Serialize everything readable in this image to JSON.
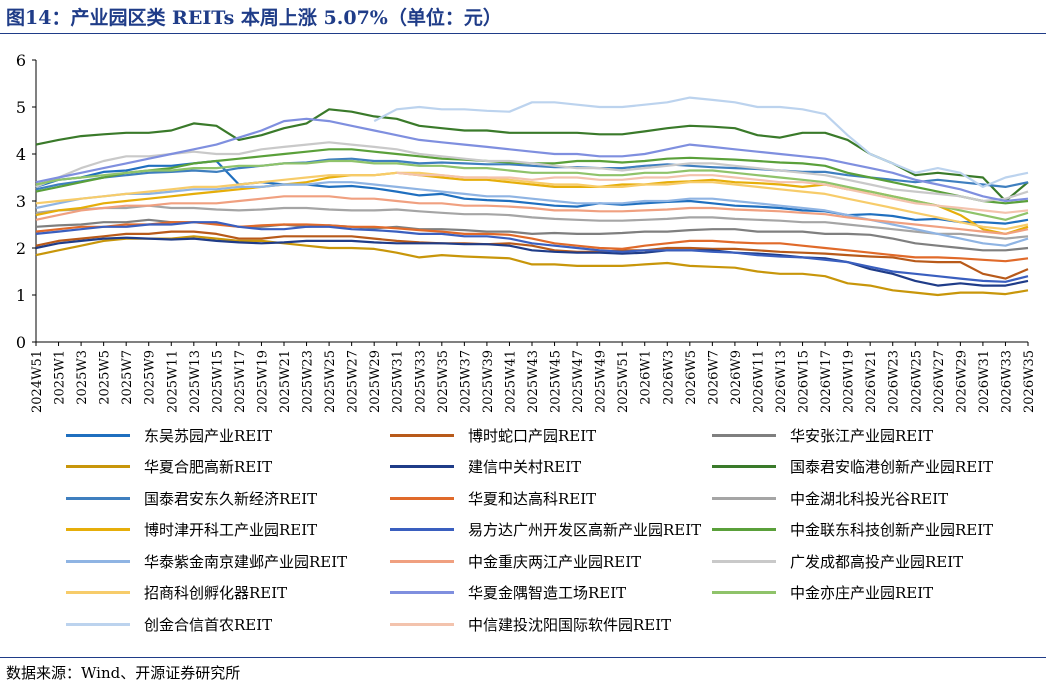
{
  "header": {
    "title": "图14：产业园区类 REITs 本周上涨 5.07%（单位：元）"
  },
  "footer": {
    "source": "数据来源：Wind、开源证券研究所"
  },
  "chart_data": {
    "type": "line",
    "ylim": [
      0,
      6
    ],
    "yticks": [
      0,
      1,
      2,
      3,
      4,
      5,
      6
    ],
    "categories": [
      "2024W51",
      "2025W1",
      "2025W3",
      "2025W5",
      "2025W7",
      "2025W9",
      "2025W11",
      "2025W13",
      "2025W15",
      "2025W17",
      "2025W19",
      "2025W21",
      "2025W23",
      "2025W25",
      "2025W27",
      "2025W29",
      "2025W31",
      "2025W33",
      "2025W35",
      "2025W37",
      "2025W39",
      "2025W41",
      "2025W43",
      "2025W45",
      "2025W47",
      "2025W49",
      "2025W51",
      "2026W1",
      "2026W3",
      "2026W5",
      "2026W7",
      "2026W9",
      "2026W11",
      "2026W13",
      "2026W15",
      "2026W17",
      "2026W19",
      "2026W21",
      "2026W23",
      "2026W25",
      "2026W27",
      "2026W29",
      "2026W31",
      "2026W33",
      "2026W35"
    ],
    "legend_placement": "bottom",
    "series": [
      {
        "name": "东吴苏园产业REIT",
        "color": "#1f6fbf",
        "values": [
          3.3,
          3.45,
          3.5,
          3.62,
          3.65,
          3.75,
          3.75,
          3.8,
          3.85,
          3.35,
          3.4,
          3.35,
          3.35,
          3.3,
          3.32,
          3.27,
          3.2,
          3.12,
          3.15,
          3.05,
          3.02,
          3.0,
          2.95,
          2.9,
          2.88,
          2.95,
          2.92,
          2.95,
          2.98,
          3.0,
          2.95,
          2.9,
          2.88,
          2.85,
          2.8,
          2.78,
          2.7,
          2.72,
          2.68,
          2.6,
          2.62,
          2.55,
          2.55,
          2.52,
          2.6
        ]
      },
      {
        "name": "博时蛇口产园REIT",
        "color": "#b85a1a",
        "values": [
          2.05,
          2.15,
          2.2,
          2.25,
          2.3,
          2.3,
          2.35,
          2.35,
          2.3,
          2.2,
          2.2,
          2.25,
          2.25,
          2.25,
          2.25,
          2.2,
          2.15,
          2.12,
          2.1,
          2.1,
          2.08,
          2.1,
          2.05,
          1.95,
          1.92,
          1.92,
          1.95,
          1.95,
          2.0,
          2.0,
          1.98,
          1.98,
          1.95,
          1.92,
          1.9,
          1.88,
          1.85,
          1.82,
          1.8,
          1.72,
          1.7,
          1.7,
          1.45,
          1.35,
          1.55
        ]
      },
      {
        "name": "华安张江产业园REIT",
        "color": "#7f7f7f",
        "values": [
          2.45,
          2.48,
          2.5,
          2.55,
          2.55,
          2.6,
          2.55,
          2.55,
          2.52,
          2.45,
          2.45,
          2.5,
          2.45,
          2.48,
          2.45,
          2.42,
          2.45,
          2.4,
          2.4,
          2.38,
          2.35,
          2.35,
          2.3,
          2.32,
          2.3,
          2.3,
          2.32,
          2.35,
          2.35,
          2.38,
          2.4,
          2.4,
          2.35,
          2.35,
          2.35,
          2.3,
          2.3,
          2.28,
          2.2,
          2.1,
          2.05,
          2.0,
          1.95,
          1.95,
          2.0
        ]
      },
      {
        "name": "华夏合肥高新REIT",
        "color": "#c8960a",
        "values": [
          1.85,
          1.95,
          2.05,
          2.15,
          2.2,
          2.2,
          2.2,
          2.25,
          2.2,
          2.15,
          2.15,
          2.1,
          2.05,
          2.0,
          2.0,
          1.98,
          1.9,
          1.8,
          1.85,
          1.82,
          1.8,
          1.78,
          1.65,
          1.65,
          1.62,
          1.62,
          1.62,
          1.65,
          1.68,
          1.62,
          1.6,
          1.58,
          1.5,
          1.45,
          1.45,
          1.4,
          1.25,
          1.2,
          1.1,
          1.05,
          1.0,
          1.05,
          1.05,
          1.02,
          1.1
        ]
      },
      {
        "name": "建信中关村REIT",
        "color": "#1f3c88",
        "values": [
          2.0,
          2.1,
          2.15,
          2.2,
          2.22,
          2.2,
          2.18,
          2.2,
          2.15,
          2.12,
          2.1,
          2.12,
          2.15,
          2.15,
          2.15,
          2.12,
          2.1,
          2.1,
          2.1,
          2.08,
          2.08,
          2.05,
          1.95,
          1.92,
          1.9,
          1.9,
          1.88,
          1.9,
          1.95,
          1.95,
          1.95,
          1.9,
          1.88,
          1.85,
          1.8,
          1.78,
          1.7,
          1.55,
          1.45,
          1.3,
          1.2,
          1.25,
          1.2,
          1.2,
          1.3
        ]
      },
      {
        "name": "国泰君安临港创新产业园REIT",
        "color": "#3a7a2a",
        "values": [
          4.2,
          4.3,
          4.38,
          4.42,
          4.45,
          4.45,
          4.5,
          4.65,
          4.6,
          4.3,
          4.4,
          4.55,
          4.65,
          4.95,
          4.9,
          4.8,
          4.75,
          4.6,
          4.55,
          4.5,
          4.5,
          4.45,
          4.45,
          4.45,
          4.45,
          4.42,
          4.42,
          4.48,
          4.55,
          4.6,
          4.58,
          4.55,
          4.4,
          4.35,
          4.45,
          4.45,
          4.3,
          4.0,
          3.8,
          3.55,
          3.6,
          3.55,
          3.5,
          3.0,
          3.4
        ]
      },
      {
        "name": "国泰君安东久新经济REIT",
        "color": "#3f7fbf",
        "values": [
          3.25,
          3.35,
          3.42,
          3.5,
          3.55,
          3.6,
          3.62,
          3.65,
          3.62,
          3.7,
          3.75,
          3.8,
          3.82,
          3.88,
          3.9,
          3.85,
          3.85,
          3.8,
          3.82,
          3.8,
          3.78,
          3.78,
          3.75,
          3.72,
          3.72,
          3.7,
          3.7,
          3.75,
          3.78,
          3.75,
          3.72,
          3.7,
          3.68,
          3.65,
          3.62,
          3.62,
          3.55,
          3.5,
          3.45,
          3.4,
          3.45,
          3.4,
          3.35,
          3.3,
          3.4
        ]
      },
      {
        "name": "华夏和达高科REIT",
        "color": "#e06a2a",
        "values": [
          2.35,
          2.4,
          2.45,
          2.45,
          2.5,
          2.5,
          2.55,
          2.55,
          2.5,
          2.45,
          2.48,
          2.5,
          2.5,
          2.48,
          2.45,
          2.45,
          2.42,
          2.38,
          2.35,
          2.3,
          2.3,
          2.28,
          2.2,
          2.1,
          2.05,
          2.0,
          1.98,
          2.05,
          2.1,
          2.15,
          2.15,
          2.12,
          2.1,
          2.1,
          2.05,
          2.0,
          1.95,
          1.9,
          1.85,
          1.8,
          1.8,
          1.78,
          1.75,
          1.72,
          1.78
        ]
      },
      {
        "name": "中金湖北科投光谷REIT",
        "color": "#a5a5a5",
        "values": [
          2.75,
          2.8,
          2.82,
          2.85,
          2.85,
          2.9,
          2.85,
          2.85,
          2.82,
          2.8,
          2.82,
          2.85,
          2.85,
          2.82,
          2.8,
          2.8,
          2.82,
          2.78,
          2.75,
          2.72,
          2.72,
          2.7,
          2.65,
          2.62,
          2.6,
          2.58,
          2.58,
          2.6,
          2.62,
          2.65,
          2.65,
          2.62,
          2.6,
          2.58,
          2.55,
          2.55,
          2.5,
          2.45,
          2.4,
          2.35,
          2.3,
          2.3,
          2.25,
          2.2,
          2.25
        ]
      },
      {
        "name": "博时津开科工产业园REIT",
        "color": "#e6ae0a",
        "values": [
          2.7,
          2.8,
          2.85,
          2.95,
          3.0,
          3.05,
          3.1,
          3.15,
          3.2,
          3.25,
          3.3,
          3.35,
          3.4,
          3.5,
          3.55,
          3.55,
          3.6,
          3.55,
          3.5,
          3.45,
          3.45,
          3.4,
          3.35,
          3.3,
          3.3,
          3.3,
          3.35,
          3.35,
          3.4,
          3.42,
          3.45,
          3.4,
          3.38,
          3.35,
          3.3,
          3.35,
          3.25,
          3.2,
          3.1,
          3.0,
          2.9,
          2.7,
          2.4,
          2.3,
          2.45
        ]
      },
      {
        "name": "易方达广州开发区高新产业园REIT",
        "color": "#3a5fbf",
        "values": [
          2.3,
          2.35,
          2.4,
          2.45,
          2.45,
          2.5,
          2.5,
          2.55,
          2.55,
          2.45,
          2.4,
          2.4,
          2.45,
          2.45,
          2.4,
          2.38,
          2.35,
          2.3,
          2.3,
          2.25,
          2.25,
          2.2,
          2.1,
          2.05,
          2.0,
          1.95,
          1.92,
          1.95,
          1.95,
          1.95,
          1.92,
          1.9,
          1.85,
          1.82,
          1.8,
          1.75,
          1.7,
          1.6,
          1.5,
          1.45,
          1.4,
          1.35,
          1.3,
          1.28,
          1.4
        ]
      },
      {
        "name": "中金联东科技创新产业园REIT",
        "color": "#5aa03a",
        "values": [
          3.2,
          3.3,
          3.4,
          3.5,
          3.6,
          3.65,
          3.7,
          3.8,
          3.85,
          3.9,
          3.95,
          4.0,
          4.05,
          4.1,
          4.1,
          4.05,
          4.0,
          3.95,
          3.9,
          3.88,
          3.85,
          3.82,
          3.8,
          3.8,
          3.85,
          3.85,
          3.82,
          3.85,
          3.9,
          3.92,
          3.9,
          3.88,
          3.85,
          3.82,
          3.8,
          3.75,
          3.6,
          3.5,
          3.4,
          3.3,
          3.2,
          3.1,
          3.0,
          2.95,
          3.0
        ]
      },
      {
        "name": "华泰紫金南京建邺产业园REIT",
        "color": "#8fb4e3",
        "values": [
          2.85,
          2.95,
          3.05,
          3.1,
          3.15,
          3.15,
          3.2,
          3.25,
          3.25,
          3.3,
          3.3,
          3.35,
          3.35,
          3.4,
          3.4,
          3.35,
          3.3,
          3.25,
          3.2,
          3.15,
          3.1,
          3.1,
          3.05,
          3.0,
          2.95,
          2.95,
          2.95,
          3.0,
          3.0,
          3.05,
          3.05,
          3.0,
          2.95,
          2.9,
          2.85,
          2.8,
          2.7,
          2.6,
          2.5,
          2.4,
          2.3,
          2.2,
          2.1,
          2.05,
          2.2
        ]
      },
      {
        "name": "中金重庆两江产业园REIT",
        "color": "#f0a080",
        "values": [
          2.6,
          2.7,
          2.8,
          2.85,
          2.9,
          2.9,
          2.95,
          2.95,
          2.95,
          3.0,
          3.05,
          3.1,
          3.1,
          3.1,
          3.05,
          3.05,
          3.0,
          2.95,
          2.95,
          2.9,
          2.9,
          2.88,
          2.85,
          2.8,
          2.8,
          2.78,
          2.78,
          2.8,
          2.82,
          2.85,
          2.85,
          2.82,
          2.8,
          2.78,
          2.75,
          2.72,
          2.65,
          2.6,
          2.55,
          2.5,
          2.45,
          2.4,
          2.35,
          2.3,
          2.4
        ]
      },
      {
        "name": "广发成都高投产业园REIT",
        "color": "#c9c9c9",
        "values": [
          3.3,
          3.5,
          3.7,
          3.85,
          3.95,
          3.95,
          4.0,
          4.05,
          4.0,
          4.0,
          4.1,
          4.15,
          4.2,
          4.25,
          4.2,
          4.15,
          4.1,
          4.0,
          3.95,
          3.9,
          3.85,
          3.85,
          3.8,
          3.75,
          3.7,
          3.7,
          3.65,
          3.7,
          3.75,
          3.8,
          3.8,
          3.75,
          3.7,
          3.65,
          3.6,
          3.55,
          3.45,
          3.35,
          3.25,
          3.2,
          3.15,
          3.1,
          3.0,
          3.05,
          3.2
        ]
      },
      {
        "name": "招商科创孵化器REIT",
        "color": "#f7cc6a",
        "values": [
          2.95,
          3.0,
          3.05,
          3.1,
          3.15,
          3.2,
          3.25,
          3.3,
          3.3,
          3.35,
          3.4,
          3.45,
          3.5,
          3.55,
          3.55,
          3.55,
          3.6,
          3.6,
          3.55,
          3.5,
          3.5,
          3.45,
          3.4,
          3.35,
          3.35,
          3.3,
          3.3,
          3.35,
          3.35,
          3.4,
          3.4,
          3.35,
          3.3,
          3.25,
          3.2,
          3.15,
          3.05,
          2.95,
          2.85,
          2.75,
          2.65,
          2.55,
          2.45,
          2.4,
          2.5
        ]
      },
      {
        "name": "华夏金隅智造工场REIT",
        "color": "#7f8fdf",
        "values": [
          3.4,
          3.5,
          3.6,
          3.7,
          3.8,
          3.9,
          4.0,
          4.1,
          4.2,
          4.35,
          4.5,
          4.7,
          4.75,
          4.7,
          4.6,
          4.5,
          4.4,
          4.3,
          4.25,
          4.2,
          4.15,
          4.1,
          4.05,
          4.0,
          4.0,
          3.95,
          3.95,
          4.0,
          4.1,
          4.2,
          4.15,
          4.1,
          4.05,
          4.0,
          3.95,
          3.9,
          3.8,
          3.7,
          3.6,
          3.45,
          3.35,
          3.25,
          3.1,
          3.0,
          3.05
        ]
      },
      {
        "name": "中金亦庄产业园REIT",
        "color": "#8fc36a",
        "values": [
          3.35,
          3.45,
          3.5,
          3.55,
          3.6,
          3.65,
          3.65,
          3.7,
          3.7,
          3.75,
          3.75,
          3.8,
          3.8,
          3.85,
          3.85,
          3.8,
          3.8,
          3.75,
          3.75,
          3.7,
          3.7,
          3.65,
          3.6,
          3.6,
          3.6,
          3.55,
          3.55,
          3.6,
          3.6,
          3.65,
          3.65,
          3.6,
          3.55,
          3.5,
          3.45,
          3.4,
          3.3,
          3.2,
          3.1,
          3.0,
          2.9,
          2.8,
          2.7,
          2.6,
          2.75
        ]
      },
      {
        "name": "创金合信首农REIT",
        "color": "#bcd3ee",
        "values": [
          null,
          null,
          null,
          null,
          null,
          null,
          null,
          null,
          null,
          null,
          null,
          null,
          null,
          null,
          null,
          4.7,
          4.95,
          5.0,
          4.95,
          4.95,
          4.92,
          4.9,
          5.1,
          5.1,
          5.05,
          5.0,
          5.0,
          5.05,
          5.1,
          5.2,
          5.15,
          5.1,
          5.0,
          5.0,
          4.95,
          4.85,
          4.4,
          4.0,
          3.8,
          3.6,
          3.7,
          3.6,
          3.3,
          3.5,
          3.6
        ]
      },
      {
        "name": "中信建投沈阳国际软件园REIT",
        "color": "#f3c3ad",
        "values": [
          null,
          null,
          null,
          null,
          null,
          null,
          null,
          null,
          null,
          null,
          null,
          null,
          null,
          null,
          null,
          null,
          3.6,
          3.55,
          3.55,
          3.5,
          3.5,
          3.5,
          3.45,
          3.5,
          3.5,
          3.45,
          3.45,
          3.5,
          3.5,
          3.55,
          3.55,
          3.5,
          3.45,
          3.4,
          3.4,
          3.35,
          3.25,
          3.15,
          3.05,
          2.95,
          2.9,
          2.85,
          2.8,
          2.75,
          2.8
        ]
      }
    ]
  }
}
